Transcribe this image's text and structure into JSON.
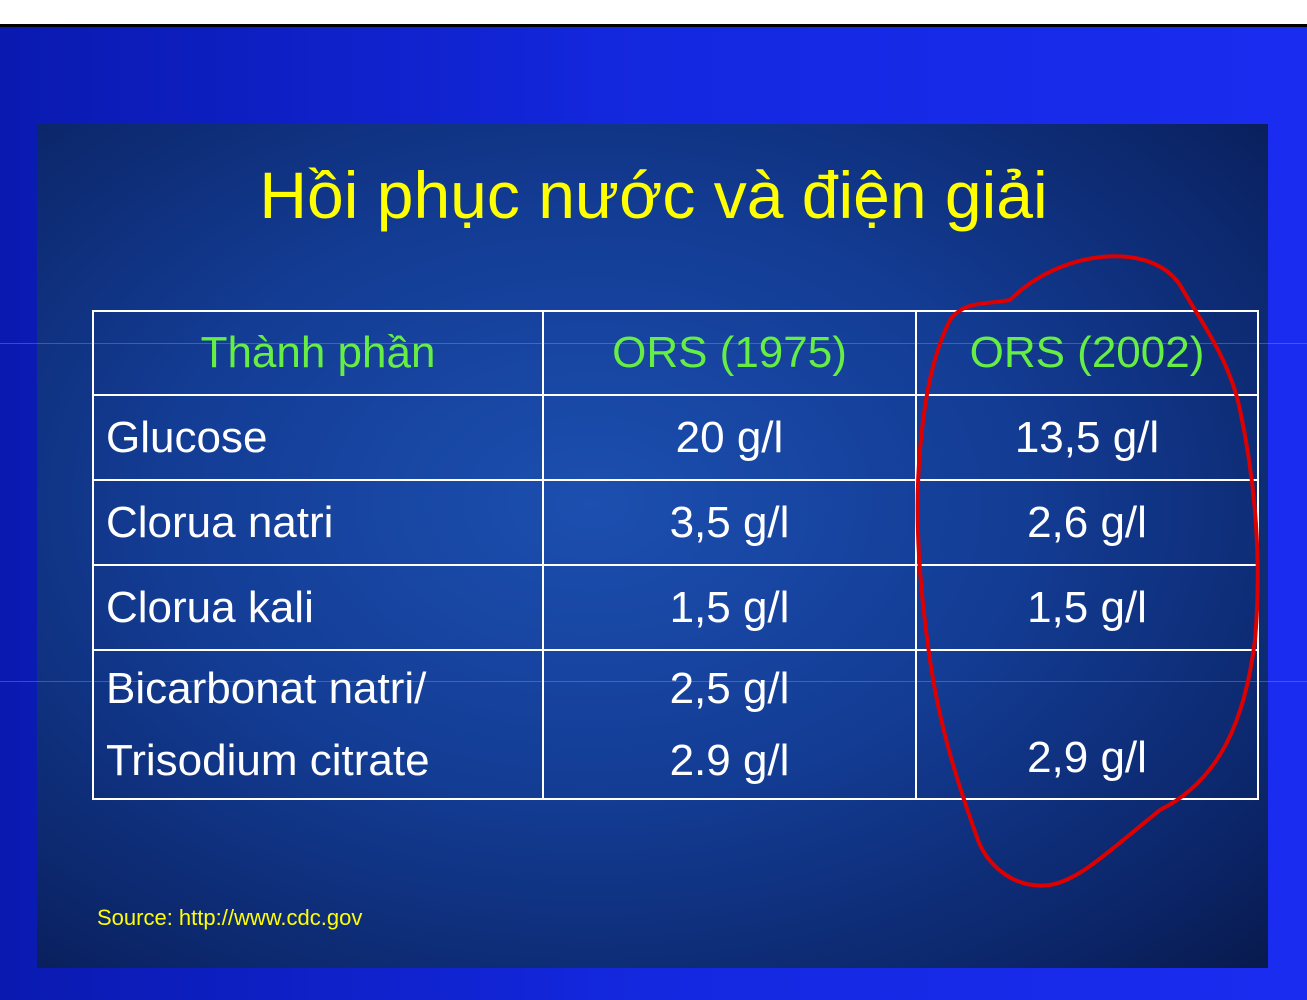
{
  "slide": {
    "title": "Hồi phục nước và điện giải",
    "source": "Source: http://www.cdc.gov"
  },
  "table": {
    "headers": [
      "Thành phần",
      "ORS (1975)",
      "ORS (2002)"
    ],
    "rows": [
      {
        "component": "Glucose",
        "ors1975": "20 g/l",
        "ors2002": "13,5 g/l"
      },
      {
        "component": "Clorua natri",
        "ors1975": "3,5 g/l",
        "ors2002": "2,6 g/l"
      },
      {
        "component": "Clorua kali",
        "ors1975": "1,5 g/l",
        "ors2002": "1,5 g/l"
      },
      {
        "component_line1": "Bicarbonat natri/",
        "component_line2": "Trisodium citrate",
        "ors1975_line1": "2,5 g/l",
        "ors1975_line2": "2.9 g/l",
        "ors2002": "2,9 g/l"
      }
    ]
  },
  "colors": {
    "title": "#ffff00",
    "header_text": "#66ee44",
    "cell_text": "#ffffff",
    "annotation": "#dd0000"
  }
}
